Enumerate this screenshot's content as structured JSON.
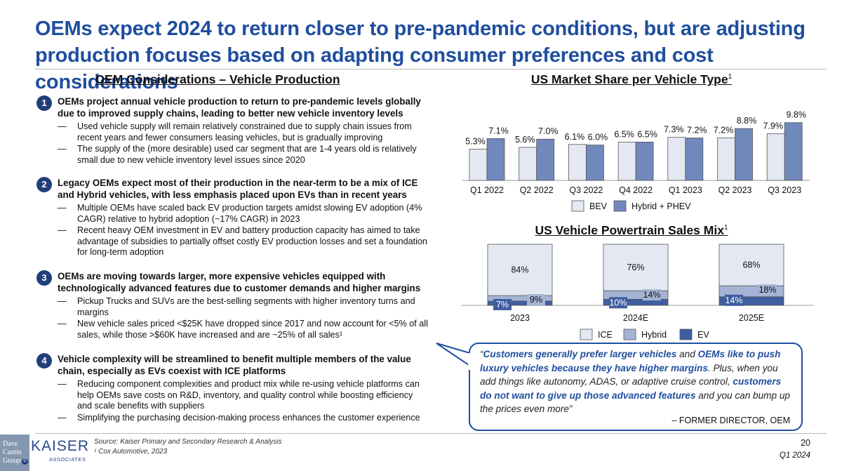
{
  "title": "OEMs expect 2024 to return closer to pre-pandemic conditions, but are adjusting production focuses based on adapting consumer preferences and cost considerations",
  "left_section": {
    "heading": "OEM Considerations – Vehicle Production",
    "items": [
      {
        "number": "1",
        "heading": "OEMs project annual vehicle production to return to pre-pandemic levels globally due to improved supply chains, leading to better new vehicle inventory levels",
        "bullets": [
          "Used vehicle supply will remain relatively constrained due to supply chain issues from recent years and fewer consumers leasing vehicles, but is gradually improving",
          "The supply of the (more desirable) used car segment that are 1-4 years old is relatively small due to new vehicle inventory level issues since 2020"
        ]
      },
      {
        "number": "2",
        "heading": "Legacy OEMs expect most of their production in the near-term to be a mix of ICE and Hybrid vehicles, with less emphasis placed upon EVs than in recent years",
        "bullets": [
          "Multiple OEMs have scaled back EV production targets amidst slowing EV adoption (4% CAGR) relative to hybrid adoption (~17% CAGR) in 2023",
          "Recent heavy OEM investment in EV and battery production capacity has aimed to take advantage of subsidies to partially offset costly EV production losses and set a foundation for long-term adoption"
        ]
      },
      {
        "number": "3",
        "heading": "OEMs are moving towards larger, more expensive vehicles equipped with technologically advanced features due to customer demands and higher margins",
        "bullets": [
          "Pickup Trucks and SUVs are the best-selling segments with higher inventory turns and margins",
          "New vehicle sales priced <$25K have dropped since 2017 and now account for <5% of all sales, while those >$60K have increased and are ~25% of all sales¹"
        ]
      },
      {
        "number": "4",
        "heading": "Vehicle complexity will be streamlined to benefit multiple members of the value chain, especially as EVs coexist with ICE platforms",
        "bullets": [
          "Reducing component complexities and product mix while re-using vehicle platforms can help OEMs save costs on R&D, inventory, and quality control while boosting efficiency and scale benefits with suppliers",
          "Simplifying the purchasing decision-making process enhances the customer experience"
        ]
      }
    ]
  },
  "bullet_dash": "—",
  "charts": {
    "market_share_title": "US Market Share per Vehicle Type",
    "powertrain_title": "US Vehicle Powertrain Sales Mix",
    "footnote_marker": "1"
  },
  "chart_data": [
    {
      "type": "bar",
      "title": "US Market Share per Vehicle Type",
      "categories": [
        "Q1 2022",
        "Q2 2022",
        "Q3 2022",
        "Q4 2022",
        "Q1 2023",
        "Q2 2023",
        "Q3 2023"
      ],
      "series": [
        {
          "name": "BEV",
          "values": [
            5.3,
            5.6,
            6.1,
            6.5,
            7.3,
            7.2,
            7.9
          ],
          "labels": [
            "5.3%",
            "5.6%",
            "6.1%",
            "6.5%",
            "7.3%",
            "7.2%",
            "7.9%"
          ],
          "color": "#e3e8f2"
        },
        {
          "name": "Hybrid + PHEV",
          "values": [
            7.1,
            7.0,
            6.0,
            6.5,
            7.2,
            8.8,
            9.8
          ],
          "labels": [
            "7.1%",
            "7.0%",
            "6.0%",
            "6.5%",
            "7.2%",
            "8.8%",
            "9.8%"
          ],
          "color": "#7088bc"
        }
      ],
      "legend": "bottom"
    },
    {
      "type": "bar",
      "stacked": true,
      "title": "US Vehicle Powertrain Sales Mix",
      "categories": [
        "2023",
        "2024E",
        "2025E"
      ],
      "series": [
        {
          "name": "EV",
          "values": [
            7,
            10,
            14
          ],
          "labels": [
            "7%",
            "10%",
            "14%"
          ],
          "color": "#3f5ea0"
        },
        {
          "name": "Hybrid",
          "values": [
            9,
            14,
            18
          ],
          "labels": [
            "9%",
            "14%",
            "18%"
          ],
          "color": "#a5b4d4"
        },
        {
          "name": "ICE",
          "values": [
            84,
            76,
            68
          ],
          "labels": [
            "84%",
            "76%",
            "68%"
          ],
          "color": "#e3e8f2"
        }
      ],
      "legend_order": [
        "ICE",
        "Hybrid",
        "EV"
      ],
      "legend": "bottom"
    }
  ],
  "quote": {
    "open": "“",
    "hl1": "Customers generally prefer larger vehicles",
    "t1": " and ",
    "hl2": "OEMs like to push luxury vehicles because they have higher margins",
    "t2": ". Plus, when you add things like autonomy, ADAS, or adaptive cruise control, ",
    "hl3": "customers do not want to give up those advanced features",
    "t3": " and you can bump up the prices even more”",
    "attribution": "– FORMER DIRECTOR, OEM"
  },
  "footer": {
    "source": "Source: Kaiser Primary and Secondary Research & Analysis",
    "footnote": "¹ Cox Automotive, 2023",
    "page_number": "20",
    "date": "Q1 2024",
    "logo_dcg_lines": [
      "Dave",
      "Cantin",
      "Group"
    ],
    "logo_dcg_badge": "D",
    "logo_kaiser": "KAISER",
    "logo_kaiser_sub": "ASSOCIATES"
  },
  "colors": {
    "title": "#1f4e9e",
    "number_circle": "#1f3e7a",
    "accent": "#1f4e9e"
  }
}
